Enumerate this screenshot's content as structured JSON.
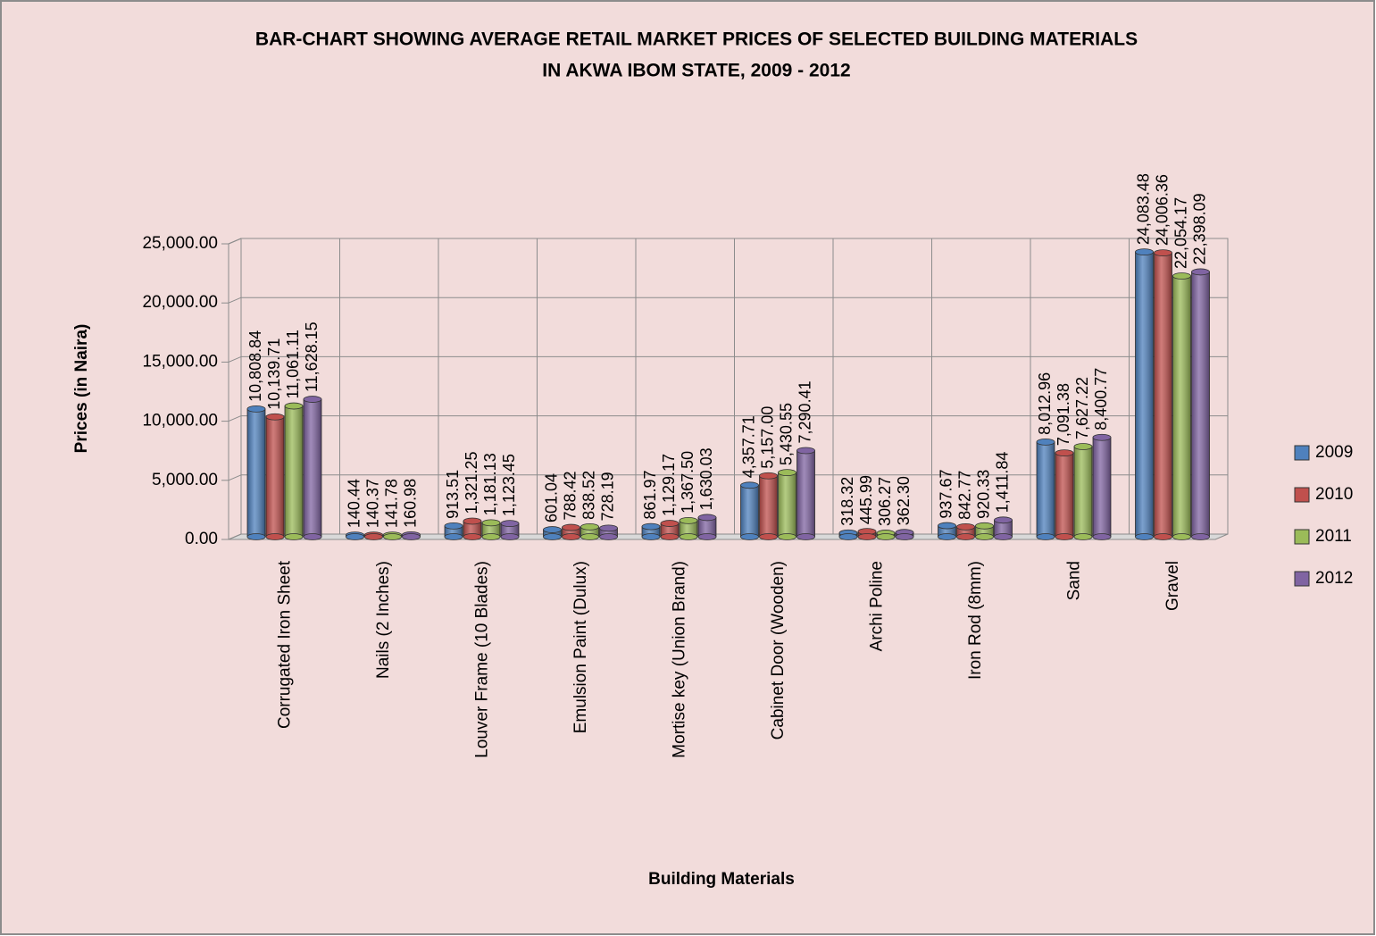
{
  "chart_data": {
    "type": "bar",
    "title": [
      "BAR-CHART SHOWING AVERAGE RETAIL MARKET PRICES OF SELECTED BUILDING MATERIALS",
      "IN AKWA IBOM STATE, 2009 - 2012"
    ],
    "x_label": "Building Materials",
    "y_label": "Prices (in Naira)",
    "categories": [
      "Corrugated Iron Sheet",
      "Nails (2 Inches)",
      "Louver Frame (10 Blades)",
      "Emulsion Paint (Dulux)",
      "Mortise key (Union Brand)",
      "Cabinet Door (Wooden)",
      "Archi Poline",
      "Iron Rod (8mm)",
      "Sand",
      "Gravel"
    ],
    "series": [
      {
        "name": "2009",
        "color": "#4f81bd",
        "values": [
          10808.84,
          140.44,
          913.51,
          601.04,
          861.97,
          4357.71,
          318.32,
          937.67,
          8012.96,
          24083.48
        ],
        "value_labels": [
          "10,808.84",
          "140.44",
          "913.51",
          "601.04",
          "861.97",
          "4,357.71",
          "318.32",
          "937.67",
          "8,012.96",
          "24,083.48"
        ]
      },
      {
        "name": "2010",
        "color": "#c0504d",
        "values": [
          10139.71,
          140.37,
          1321.25,
          788.42,
          1129.17,
          5157.0,
          445.99,
          842.77,
          7091.38,
          24006.36
        ],
        "value_labels": [
          "10,139.71",
          "140.37",
          "1,321.25",
          "788.42",
          "1,129.17",
          "5,157.00",
          "445.99",
          "842.77",
          "7,091.38",
          "24,006.36"
        ]
      },
      {
        "name": "2011",
        "color": "#9bbb59",
        "values": [
          11061.11,
          141.78,
          1181.13,
          838.52,
          1367.5,
          5430.55,
          306.27,
          920.33,
          7627.22,
          22054.17
        ],
        "value_labels": [
          "11,061.11",
          "141.78",
          "1,181.13",
          "838.52",
          "1,367.50",
          "5,430.55",
          "306.27",
          "920.33",
          "7,627.22",
          "22,054.17"
        ]
      },
      {
        "name": "2012",
        "color": "#8064a2",
        "values": [
          11628.15,
          160.98,
          1123.45,
          728.19,
          1630.03,
          7290.41,
          362.3,
          1411.84,
          8400.77,
          22398.09
        ],
        "value_labels": [
          "11,628.15",
          "160.98",
          "1,123.45",
          "728.19",
          "1,630.03",
          "7,290.41",
          "362.30",
          "1,411.84",
          "8,400.77",
          "22,398.09"
        ]
      }
    ],
    "ylim": [
      0,
      25000
    ],
    "yticks": [
      {
        "value": 0,
        "label": "0.00"
      },
      {
        "value": 5000,
        "label": "5,000.00"
      },
      {
        "value": 10000,
        "label": "10,000.00"
      },
      {
        "value": 15000,
        "label": "15,000.00"
      },
      {
        "value": 20000,
        "label": "20,000.00"
      },
      {
        "value": 25000,
        "label": "25,000.00"
      }
    ],
    "grid": true,
    "legend": "right"
  }
}
